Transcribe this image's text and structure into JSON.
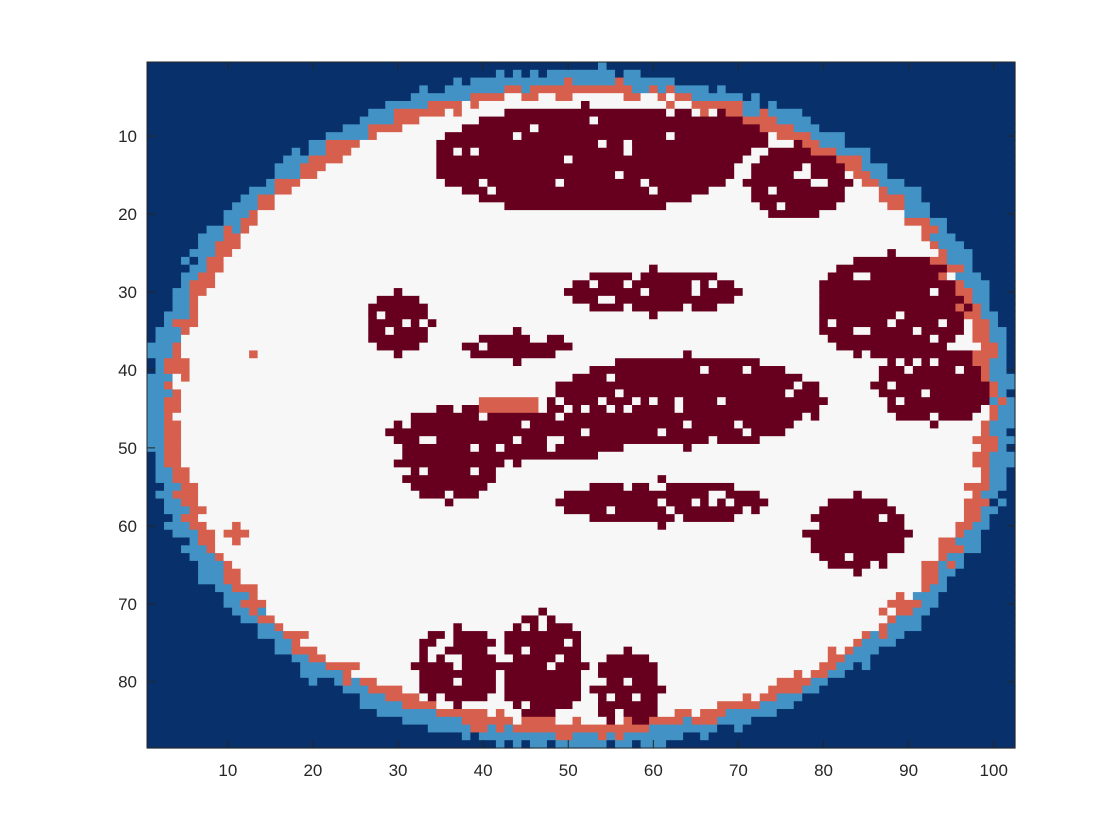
{
  "chart_data": {
    "type": "heatmap",
    "title": "",
    "xlabel": "",
    "ylabel": "",
    "xlim": [
      0.5,
      102.5
    ],
    "ylim": [
      0.5,
      88.5
    ],
    "y_reversed": true,
    "grid": false,
    "legend": "none",
    "colorbar": false,
    "x_ticks": [
      10,
      20,
      30,
      40,
      50,
      60,
      70,
      80,
      90,
      100
    ],
    "y_ticks": [
      10,
      20,
      30,
      40,
      50,
      60,
      70,
      80
    ],
    "classes": [
      {
        "id": 0,
        "color": "#08306b"
      },
      {
        "id": 1,
        "color": "#4292c6"
      },
      {
        "id": 2,
        "color": "#d6604d"
      },
      {
        "id": 3,
        "color": "#f7f7f7"
      },
      {
        "id": 4,
        "color": "#67001f"
      }
    ],
    "shape": {
      "center_x": 51.5,
      "center_y": 45,
      "outer_radius_x": 51,
      "outer_radius_y": 43.5,
      "band_1_width": 2,
      "band_2_width": 1.7
    },
    "class4_regions": [
      {
        "cx": 52,
        "cy": 13,
        "rx": 18,
        "ry": 7
      },
      {
        "cx": 68,
        "cy": 9,
        "rx": 6,
        "ry": 4
      },
      {
        "cx": 77,
        "cy": 16,
        "rx": 6,
        "ry": 5
      },
      {
        "cx": 88,
        "cy": 32,
        "rx": 9,
        "ry": 7
      },
      {
        "cx": 93,
        "cy": 42,
        "rx": 7,
        "ry": 5
      },
      {
        "cx": 64,
        "cy": 44,
        "rx": 16,
        "ry": 6
      },
      {
        "cx": 44,
        "cy": 48,
        "rx": 15,
        "ry": 4
      },
      {
        "cx": 36,
        "cy": 52,
        "rx": 6,
        "ry": 5
      },
      {
        "cx": 61,
        "cy": 57,
        "rx": 12,
        "ry": 3
      },
      {
        "cx": 84,
        "cy": 61,
        "rx": 6,
        "ry": 5
      },
      {
        "cx": 37,
        "cy": 78,
        "rx": 5,
        "ry": 5
      },
      {
        "cx": 47,
        "cy": 78,
        "rx": 5,
        "ry": 7
      },
      {
        "cx": 57,
        "cy": 81,
        "rx": 4,
        "ry": 5
      },
      {
        "cx": 60,
        "cy": 30,
        "rx": 10,
        "ry": 3
      },
      {
        "cx": 30,
        "cy": 34,
        "rx": 4,
        "ry": 4
      },
      {
        "cx": 44,
        "cy": 37,
        "rx": 6,
        "ry": 2
      }
    ],
    "class2_spots": [
      {
        "cx": 43,
        "cy": 44.5,
        "rx": 4,
        "ry": 1
      },
      {
        "cx": 11,
        "cy": 61,
        "rx": 1,
        "ry": 1.3
      },
      {
        "cx": 13,
        "cy": 38,
        "rx": 0.6,
        "ry": 0.6
      }
    ]
  }
}
